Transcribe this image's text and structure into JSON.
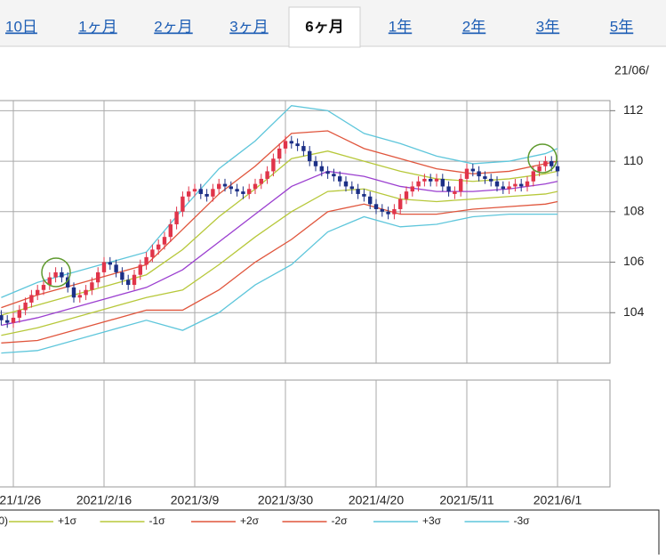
{
  "tabs": [
    "10日",
    "1ヶ月",
    "2ヶ月",
    "3ヶ月",
    "6ヶ月",
    "1年",
    "2年",
    "3年",
    "5年"
  ],
  "active_tab": 4,
  "header_date": "21/06/",
  "chart_data": {
    "type": "candlestick",
    "categories": [
      null,
      null,
      "2021/1/26",
      null,
      null,
      null,
      null,
      null,
      null,
      null,
      null,
      null,
      null,
      null,
      null,
      null,
      null,
      "2021/2/16",
      null,
      null,
      null,
      null,
      null,
      null,
      null,
      null,
      null,
      null,
      null,
      null,
      null,
      null,
      "2021/3/9",
      null,
      null,
      null,
      null,
      null,
      null,
      null,
      null,
      null,
      null,
      null,
      null,
      null,
      null,
      "2021/3/30",
      null,
      null,
      null,
      null,
      null,
      null,
      null,
      null,
      null,
      null,
      null,
      null,
      null,
      null,
      "2021/4/20",
      null,
      null,
      null,
      null,
      null,
      null,
      null,
      null,
      null,
      null,
      null,
      null,
      null,
      null,
      "2021/5/11",
      null,
      null,
      null,
      null,
      null,
      null,
      null,
      null,
      null,
      null,
      null,
      null,
      null,
      null,
      "2021/6/1"
    ],
    "open": [
      103.9,
      103.7,
      103.6,
      103.8,
      104.1,
      104.4,
      104.7,
      104.9,
      105.1,
      105.4,
      105.6,
      105.4,
      105.0,
      104.6,
      104.7,
      104.9,
      105.2,
      105.6,
      106.0,
      105.9,
      105.6,
      105.3,
      105.1,
      105.5,
      105.9,
      106.2,
      106.5,
      106.7,
      107.0,
      107.5,
      108.0,
      108.6,
      108.8,
      108.9,
      108.7,
      108.6,
      108.9,
      109.1,
      109.0,
      108.9,
      108.8,
      108.7,
      108.9,
      109.1,
      109.3,
      109.6,
      110.1,
      110.5,
      110.8,
      110.7,
      110.6,
      110.4,
      110.0,
      109.8,
      109.6,
      109.5,
      109.4,
      109.2,
      109.0,
      108.9,
      108.7,
      108.6,
      108.3,
      108.1,
      108.0,
      107.9,
      108.1,
      108.5,
      108.8,
      109.0,
      109.2,
      109.3,
      109.2,
      109.3,
      109.0,
      108.7,
      108.8,
      109.3,
      109.7,
      109.6,
      109.4,
      109.3,
      109.2,
      109.0,
      108.9,
      109.0,
      109.1,
      109.0,
      109.2,
      109.6,
      109.8,
      110.0,
      109.8
    ],
    "high": [
      104.1,
      103.9,
      104.0,
      104.3,
      104.6,
      104.9,
      105.1,
      105.3,
      105.6,
      105.8,
      105.8,
      105.6,
      105.2,
      104.9,
      105.1,
      105.4,
      105.8,
      106.2,
      106.2,
      106.1,
      105.8,
      105.5,
      105.7,
      106.1,
      106.4,
      106.7,
      106.9,
      107.2,
      107.7,
      108.2,
      108.8,
      109.0,
      109.1,
      109.1,
      108.9,
      109.1,
      109.3,
      109.3,
      109.2,
      109.1,
      109.0,
      109.1,
      109.3,
      109.5,
      109.8,
      110.3,
      110.7,
      111.0,
      111.0,
      110.9,
      110.8,
      110.6,
      110.2,
      110.0,
      109.8,
      109.7,
      109.6,
      109.4,
      109.2,
      109.1,
      108.9,
      108.8,
      108.5,
      108.3,
      108.2,
      108.3,
      108.7,
      109.0,
      109.2,
      109.4,
      109.5,
      109.5,
      109.5,
      109.5,
      109.2,
      109.0,
      109.5,
      109.9,
      109.9,
      109.8,
      109.6,
      109.5,
      109.4,
      109.2,
      109.2,
      109.3,
      109.3,
      109.4,
      109.8,
      110.0,
      110.2,
      110.2,
      110.0
    ],
    "low": [
      103.5,
      103.4,
      103.4,
      103.6,
      103.9,
      104.2,
      104.5,
      104.7,
      104.9,
      105.2,
      105.2,
      104.8,
      104.4,
      104.4,
      104.5,
      104.7,
      105.0,
      105.4,
      105.7,
      105.4,
      105.1,
      104.9,
      104.9,
      105.3,
      105.7,
      106.0,
      106.3,
      106.5,
      106.8,
      107.3,
      107.8,
      108.4,
      108.6,
      108.5,
      108.4,
      108.4,
      108.7,
      108.8,
      108.7,
      108.6,
      108.5,
      108.5,
      108.7,
      108.9,
      109.1,
      109.4,
      109.9,
      110.3,
      110.5,
      110.4,
      110.2,
      109.8,
      109.6,
      109.4,
      109.3,
      109.2,
      109.0,
      108.8,
      108.7,
      108.5,
      108.4,
      108.1,
      107.9,
      107.8,
      107.7,
      107.7,
      107.9,
      108.3,
      108.6,
      108.8,
      109.0,
      109.0,
      109.0,
      108.8,
      108.6,
      108.5,
      108.6,
      109.1,
      109.4,
      109.2,
      109.1,
      109.0,
      108.8,
      108.7,
      108.7,
      108.8,
      108.8,
      108.8,
      109.0,
      109.4,
      109.6,
      109.6,
      109.4
    ],
    "close": [
      103.7,
      103.6,
      103.8,
      104.1,
      104.4,
      104.7,
      104.9,
      105.1,
      105.4,
      105.6,
      105.4,
      105.0,
      104.6,
      104.7,
      104.9,
      105.2,
      105.6,
      106.0,
      105.9,
      105.6,
      105.3,
      105.1,
      105.5,
      105.9,
      106.2,
      106.5,
      106.7,
      107.0,
      107.5,
      108.0,
      108.6,
      108.8,
      108.9,
      108.7,
      108.6,
      108.9,
      109.1,
      109.0,
      108.9,
      108.8,
      108.7,
      108.9,
      109.1,
      109.3,
      109.6,
      110.1,
      110.5,
      110.8,
      110.7,
      110.6,
      110.4,
      110.0,
      109.8,
      109.6,
      109.5,
      109.4,
      109.2,
      109.0,
      108.9,
      108.7,
      108.6,
      108.3,
      108.1,
      108.0,
      107.9,
      108.1,
      108.5,
      108.8,
      109.0,
      109.2,
      109.3,
      109.2,
      109.3,
      109.0,
      108.8,
      108.8,
      109.3,
      109.7,
      109.6,
      109.4,
      109.3,
      109.2,
      109.0,
      108.9,
      109.0,
      109.1,
      109.0,
      109.2,
      109.6,
      109.8,
      110.0,
      109.8,
      109.6
    ],
    "up_color": "#e0344a",
    "down_color": "#1b2f86",
    "series": [
      {
        "name": "0)",
        "color": "#9b3fd0",
        "x": [
          0,
          6,
          12,
          18,
          24,
          30,
          36,
          42,
          48,
          54,
          60,
          66,
          72,
          78,
          84,
          90,
          92
        ],
        "values": [
          103.5,
          103.8,
          104.2,
          104.6,
          105.0,
          105.7,
          106.8,
          107.9,
          109.0,
          109.6,
          109.4,
          109.0,
          108.8,
          108.8,
          108.9,
          109.1,
          109.2
        ]
      },
      {
        "name": "+1σ",
        "color": "#b7c83a",
        "x": [
          0,
          6,
          12,
          18,
          24,
          30,
          36,
          42,
          48,
          54,
          60,
          66,
          72,
          78,
          84,
          90,
          92
        ],
        "values": [
          103.9,
          104.3,
          104.7,
          105.1,
          105.5,
          106.5,
          107.8,
          108.9,
          110.1,
          110.4,
          110.0,
          109.6,
          109.3,
          109.2,
          109.3,
          109.5,
          109.6
        ]
      },
      {
        "name": "-1σ",
        "color": "#b7c83a",
        "x": [
          0,
          6,
          12,
          18,
          24,
          30,
          36,
          42,
          48,
          54,
          60,
          66,
          72,
          78,
          84,
          90,
          92
        ],
        "values": [
          103.1,
          103.4,
          103.8,
          104.2,
          104.6,
          104.9,
          105.9,
          107.0,
          108.0,
          108.8,
          108.9,
          108.5,
          108.4,
          108.5,
          108.6,
          108.7,
          108.8
        ]
      },
      {
        "name": "+2σ",
        "color": "#e0553c",
        "x": [
          0,
          6,
          12,
          18,
          24,
          30,
          36,
          42,
          48,
          54,
          60,
          66,
          72,
          78,
          84,
          90,
          92
        ],
        "values": [
          104.2,
          104.7,
          105.1,
          105.5,
          105.9,
          107.3,
          108.7,
          109.8,
          111.1,
          111.2,
          110.5,
          110.1,
          109.7,
          109.5,
          109.6,
          109.9,
          110.0
        ]
      },
      {
        "name": "-2σ",
        "color": "#e0553c",
        "x": [
          0,
          6,
          12,
          18,
          24,
          30,
          36,
          42,
          48,
          54,
          60,
          66,
          72,
          78,
          84,
          90,
          92
        ],
        "values": [
          102.8,
          102.9,
          103.3,
          103.7,
          104.1,
          104.1,
          104.9,
          106.0,
          106.9,
          108.0,
          108.3,
          107.9,
          107.9,
          108.1,
          108.2,
          108.3,
          108.4
        ]
      },
      {
        "name": "+3σ",
        "color": "#5ec6db",
        "x": [
          0,
          6,
          12,
          18,
          24,
          30,
          36,
          42,
          48,
          54,
          60,
          66,
          72,
          78,
          84,
          90,
          92
        ],
        "values": [
          104.6,
          105.2,
          105.6,
          106.0,
          106.4,
          108.1,
          109.7,
          110.8,
          112.2,
          112.0,
          111.1,
          110.7,
          110.2,
          109.9,
          110.0,
          110.3,
          110.5
        ]
      },
      {
        "name": "-3σ",
        "color": "#5ec6db",
        "x": [
          0,
          6,
          12,
          18,
          24,
          30,
          36,
          42,
          48,
          54,
          60,
          66,
          72,
          78,
          84,
          90,
          92
        ],
        "values": [
          102.4,
          102.5,
          102.9,
          103.3,
          103.7,
          103.3,
          104.0,
          105.1,
          105.9,
          107.2,
          107.8,
          107.4,
          107.5,
          107.8,
          107.9,
          107.9,
          107.9
        ]
      }
    ],
    "ylim": [
      102,
      112.4
    ],
    "yticks": [
      104,
      106,
      108,
      110,
      112
    ],
    "grid": true
  }
}
